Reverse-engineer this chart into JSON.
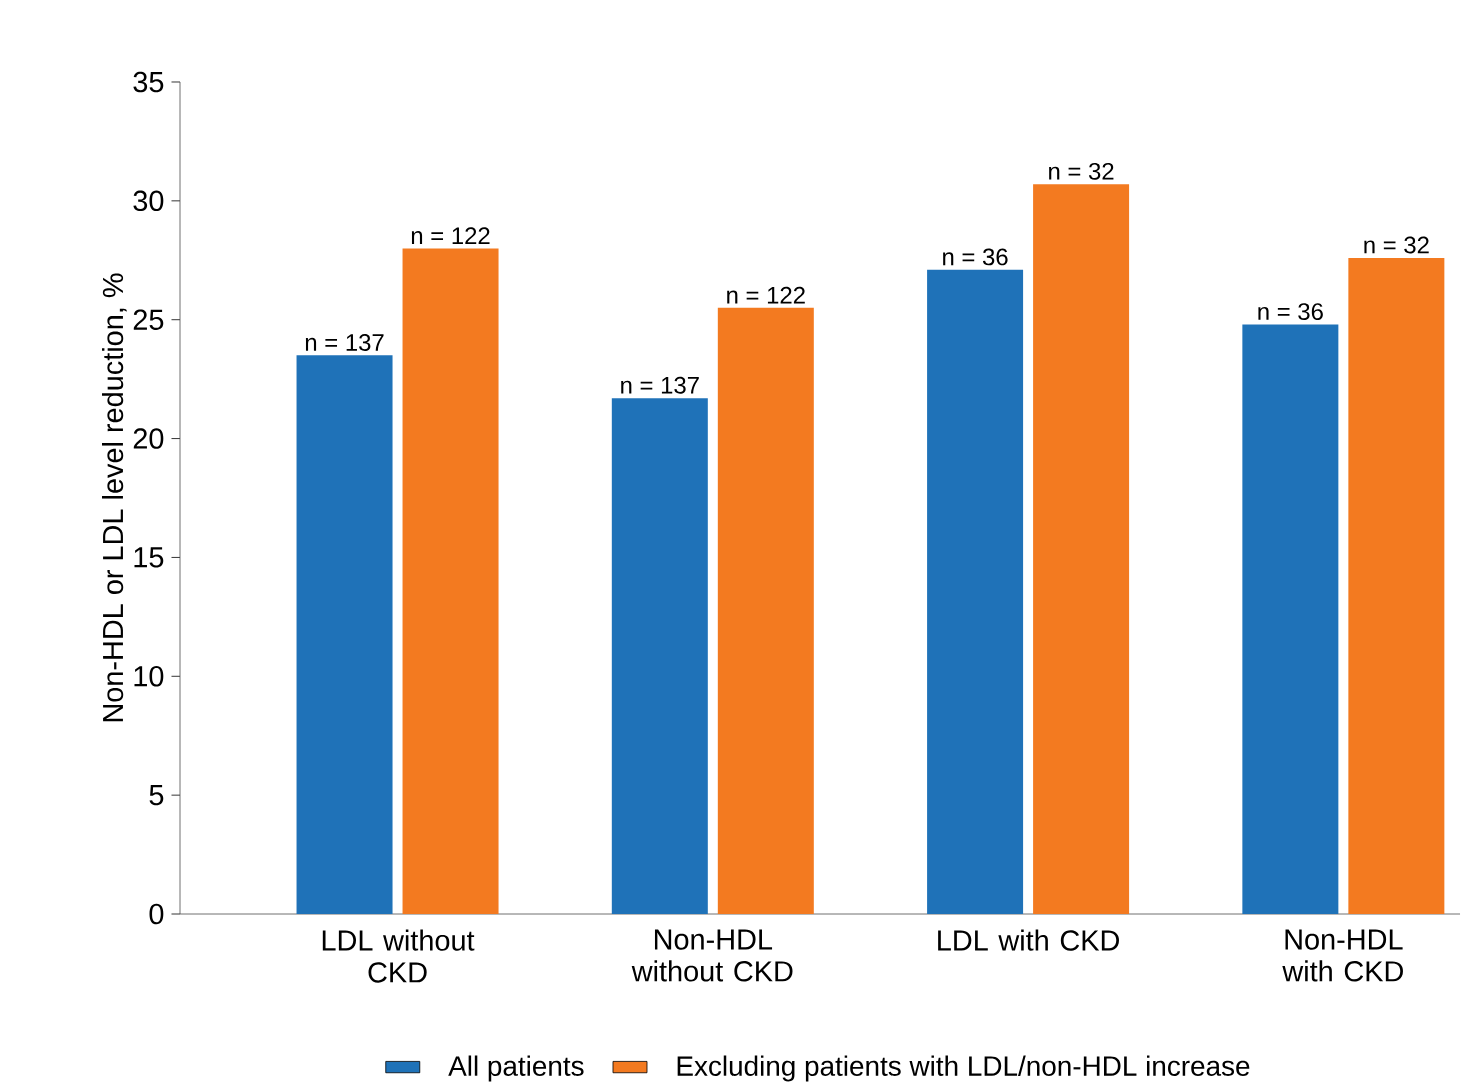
{
  "chart_data": {
    "type": "bar",
    "ylabel": "Non-HDL or LDL level reduction, %",
    "categories": [
      "LDL without CKD",
      "Non-HDL without CKD",
      "LDL with CKD",
      "Non-HDL with CKD"
    ],
    "series": [
      {
        "name": "All patients",
        "color": "#1f72b8",
        "values": [
          23.5,
          21.7,
          27.1,
          24.8
        ]
      },
      {
        "name": "Excluding patients with LDL/non-HDL increase",
        "color": "#f37a20",
        "values": [
          28.0,
          25.5,
          30.7,
          27.6
        ]
      }
    ],
    "annotations": [
      {
        "text": "n = 137",
        "x": "LDL without CKD",
        "y": 23.5
      },
      {
        "text": "n = 137",
        "x": "Non-HDL without CKD",
        "y": 21.7
      },
      {
        "text": "n = 36",
        "x": "LDL with CKD",
        "y": 27.1
      },
      {
        "text": "n = 36",
        "x": "Non-HDL with CKD",
        "y": 24.8
      },
      {
        "text": "n = 122",
        "x": "LDL without CKD",
        "y": 28.0
      },
      {
        "text": "n = 122",
        "x": "Non-HDL without CKD",
        "y": 25.5
      },
      {
        "text": "n = 32",
        "x": "LDL with CKD",
        "y": 30.7
      },
      {
        "text": "n = 32",
        "x": "Non-HDL with CKD",
        "y": 27.6
      }
    ],
    "ylim": [
      0,
      35
    ],
    "yticks": [
      0,
      5,
      10,
      15,
      20,
      25,
      30,
      35
    ],
    "legend": "bottom"
  }
}
